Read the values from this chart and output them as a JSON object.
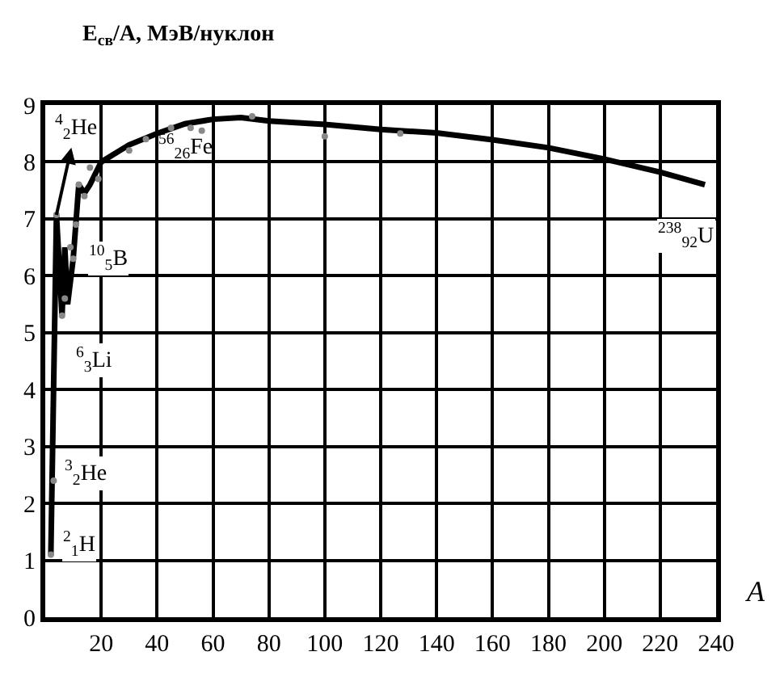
{
  "chart_data": {
    "type": "line",
    "ylabel": "E$_{св}$/A, МэВ/нуклон",
    "xlabel": "A",
    "xlim": [
      0,
      240
    ],
    "xticks": [
      20,
      40,
      60,
      80,
      100,
      120,
      140,
      160,
      180,
      200,
      220,
      240
    ],
    "ylim": [
      0,
      9
    ],
    "yticks": [
      0,
      1,
      2,
      3,
      4,
      5,
      6,
      7,
      8,
      9
    ],
    "grid": true,
    "legend": false,
    "series": [
      {
        "type": "line",
        "color": "#000000",
        "marker": "none",
        "line_style": "solid",
        "x": [
          2,
          4,
          6,
          7,
          8,
          10,
          12,
          14,
          16,
          20,
          30,
          40,
          50,
          60,
          70,
          80,
          100,
          120,
          140,
          160,
          180,
          200,
          220,
          236
        ],
        "values": [
          1.1,
          7.07,
          5.3,
          6.5,
          5.5,
          6.3,
          7.6,
          7.45,
          7.6,
          8.0,
          8.3,
          8.5,
          8.67,
          8.75,
          8.78,
          8.72,
          8.66,
          8.57,
          8.51,
          8.39,
          8.25,
          8.05,
          7.82,
          7.6
        ]
      },
      {
        "type": "scatter",
        "color": "#888888",
        "marker": "circle",
        "x": [
          2,
          3,
          4,
          6,
          7,
          9,
          10,
          11,
          12,
          14,
          16,
          19,
          30,
          36,
          45,
          52,
          56,
          74,
          100,
          127
        ],
        "values": [
          1.1,
          2.4,
          7.07,
          5.3,
          5.6,
          6.5,
          6.3,
          6.9,
          7.6,
          7.4,
          7.9,
          7.7,
          8.2,
          8.4,
          8.6,
          8.6,
          8.55,
          8.8,
          8.45,
          8.5
        ]
      }
    ],
    "annotations": [
      {
        "text": "$^{4}$$_{2}$He",
        "x": 4,
        "y": 7.07
      },
      {
        "text": "$^{2}$$_{1}$H",
        "x": 2,
        "y": 1.1
      },
      {
        "text": "$^{3}$$_{2}$He",
        "x": 3,
        "y": 2.4
      },
      {
        "text": "$^{6}$$_{3}$Li",
        "x": 6,
        "y": 5.3
      },
      {
        "text": "$^{10}$$_{5}$B",
        "x": 10,
        "y": 6.3
      },
      {
        "text": "$^{56}$$_{26}$Fe",
        "x": 56,
        "y": 8.55
      },
      {
        "text": "$^{238}$$_{92}$U",
        "x": 236,
        "y": 7.6
      }
    ]
  }
}
